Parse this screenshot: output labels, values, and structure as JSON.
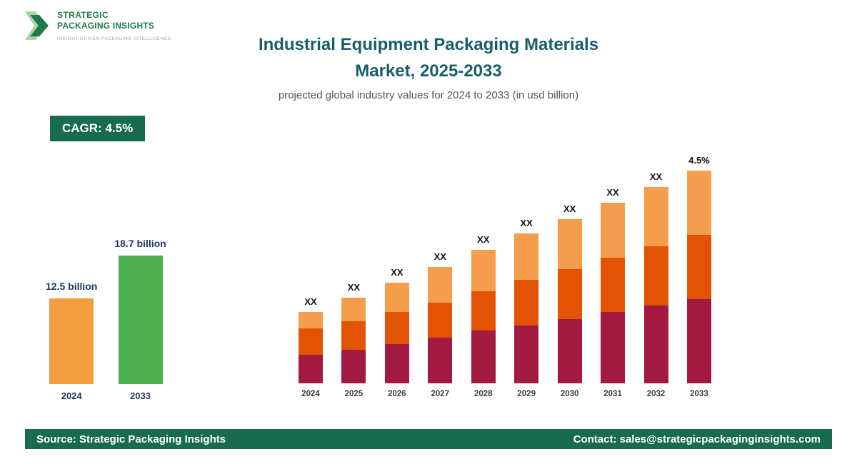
{
  "logo": {
    "line1": "STRATEGIC",
    "line2": "PACKAGING INSIGHTS",
    "tagline": "INSIGHT-DRIVEN PACKAGING INTELLIGENCE"
  },
  "header": {
    "title_line1": "Industrial Equipment Packaging Materials",
    "title_line2": "Market, 2025-2033",
    "subtitle": "projected global industry values for 2024 to 2033 (in usd billion)"
  },
  "badge": {
    "label": "CAGR: 4.5%"
  },
  "footer": {
    "source": "Source: Strategic Packaging Insights",
    "contact": "Contact: sales@strategicpackaginginsights.com"
  },
  "colors": {
    "brand_green": "#186B4E",
    "title_teal": "#175E6B",
    "logo_green": "#1E7A46",
    "value_label_navy": "#1F3864"
  },
  "chart_data": [
    {
      "type": "bar",
      "title": "2024 vs 2033 market value (usd billion)",
      "categories": [
        "2024",
        "2033"
      ],
      "values": [
        12.5,
        18.7
      ],
      "value_labels": [
        "12.5 billion",
        "18.7 billion"
      ],
      "bar_colors": [
        "#F49D40",
        "#4CAF50"
      ],
      "ylim": [
        0,
        20
      ],
      "grid": false,
      "legend_position": "none"
    },
    {
      "type": "bar",
      "stacked": true,
      "title": "Industrial Equipment Packaging Materials Market, 2024-2033",
      "categories": [
        "2024",
        "2025",
        "2026",
        "2027",
        "2028",
        "2029",
        "2030",
        "2031",
        "2032",
        "2033"
      ],
      "series": [
        {
          "name": "bottom",
          "color": "#A21942",
          "values": [
            40,
            47,
            55,
            64,
            74,
            81,
            90,
            100,
            109,
            118
          ]
        },
        {
          "name": "middle",
          "color": "#E25303",
          "values": [
            37,
            40,
            45,
            49,
            55,
            64,
            70,
            76,
            83,
            90
          ]
        },
        {
          "name": "top",
          "color": "#F59D4C",
          "values": [
            23,
            33,
            41,
            50,
            58,
            65,
            70,
            77,
            83,
            90
          ]
        }
      ],
      "bar_labels": [
        "XX",
        "XX",
        "XX",
        "XX",
        "XX",
        "XX",
        "XX",
        "XX",
        "XX",
        "4.5%"
      ],
      "xlabel": "",
      "ylabel": "",
      "grid": false,
      "legend_position": "none",
      "note": "bar values shown as XX placeholders in source image; series values are relative heights"
    }
  ]
}
